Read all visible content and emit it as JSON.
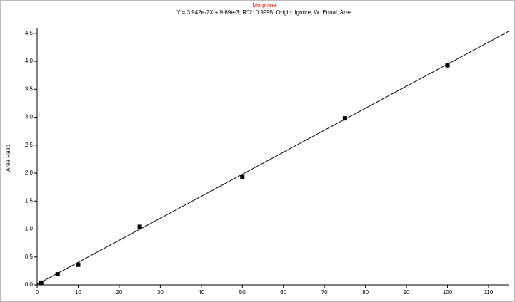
{
  "chart_data": {
    "type": "scatter",
    "title": "Morphine",
    "subtitle": "Y = 3.942e-2X + 9.69e-3; R^2: 0.9995; Origin: Ignore; W: Equal; Area",
    "y_label": "Area Ratio",
    "series": [
      {
        "color": "#000000",
        "x": [
          1,
          5,
          10,
          25,
          50,
          75,
          100
        ],
        "values": [
          0.04,
          0.19,
          0.36,
          1.04,
          1.93,
          2.98,
          3.93
        ]
      }
    ],
    "fit_line": {
      "color": "#000000",
      "x": [
        0,
        115
      ],
      "values": [
        0.01,
        4.54
      ]
    },
    "xlim": [
      0,
      115
    ],
    "ylim": [
      0,
      4.6
    ],
    "xticks": [
      0,
      10,
      20,
      30,
      40,
      50,
      60,
      70,
      80,
      90,
      100,
      110
    ],
    "yticks": [
      {
        "value": 0,
        "label": "0.0"
      },
      0.5,
      {
        "value": 1,
        "label": "1.0"
      },
      1.5,
      {
        "value": 2,
        "label": "2.0"
      },
      2.5,
      {
        "value": 3,
        "label": "3.0"
      },
      3.5,
      {
        "value": 4,
        "label": "4.0"
      },
      4.5
    ],
    "title_color": "#ff0000"
  }
}
